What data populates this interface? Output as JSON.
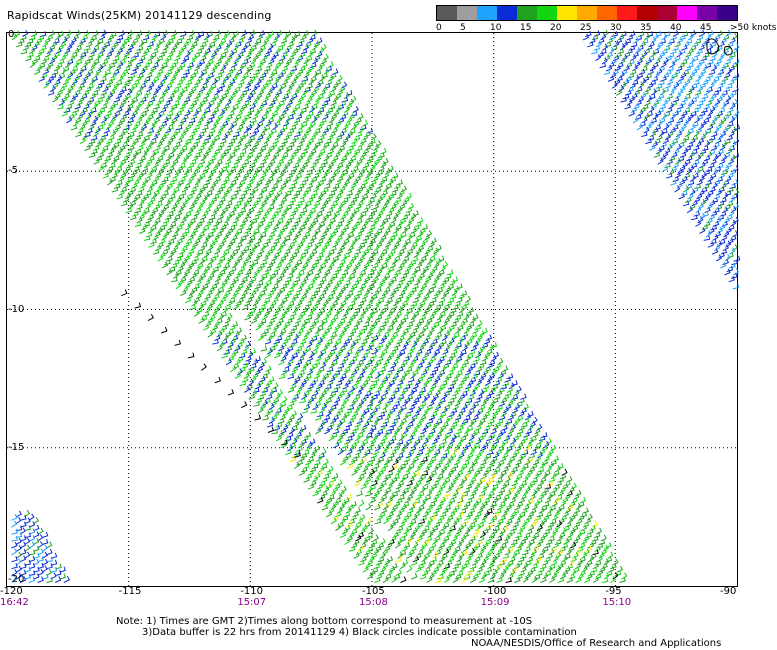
{
  "title": "Rapidscat Winds(25KM) 20141129 descending",
  "legend": {
    "colors": [
      "#5a5a5a",
      "#9e9e9e",
      "#1fa3ff",
      "#0a2bd6",
      "#1fa31f",
      "#11d611",
      "#ffe600",
      "#ffaa00",
      "#ff6600",
      "#ff1a1a",
      "#b40000",
      "#aa0033",
      "#ff00ff",
      "#7a00aa",
      "#3a008a"
    ],
    "labels": [
      "0",
      "5",
      "10",
      "15",
      "20",
      "25",
      "30",
      "35",
      "40",
      "45",
      ">50 knots"
    ]
  },
  "axes": {
    "x_ticks": [
      "-120",
      "-115",
      "-110",
      "-105",
      "-100",
      "-95",
      "-90"
    ],
    "y_ticks": [
      "0",
      "-5",
      "-10",
      "-15",
      "-20"
    ],
    "xlim": [
      -120,
      -90
    ],
    "ylim": [
      -20,
      0
    ]
  },
  "times": [
    "16:42",
    "15:07",
    "15:08",
    "15:09",
    "15:10"
  ],
  "notes": {
    "line1": "Note: 1) Times are GMT 2)Times along bottom correspond to measurement at -10S",
    "line2": "3)Data buffer is 22 hrs from 20141129 4) Black circles indicate possible contamination",
    "credit": "NOAA/NESDIS/Office of Research and Applications"
  },
  "map": {
    "swaths": [
      {
        "name": "main-swath",
        "top_lon": [
          -120,
          -107.5
        ],
        "bottom_lon": [
          -105,
          -94.5
        ],
        "lat_range": [
          0,
          -20
        ]
      },
      {
        "name": "east-swath",
        "top_lon": [
          -96.5,
          -90
        ],
        "bottom_lon": [
          -90,
          -90
        ],
        "lat_range": [
          0,
          -9.5
        ]
      },
      {
        "name": "southwest-swath",
        "top_lon": [
          -120,
          -119
        ],
        "bottom_lon": [
          -120,
          -117.5
        ],
        "lat_range": [
          -17.5,
          -20
        ]
      }
    ],
    "wind_colors": {
      "calm": "#000000",
      "light": "#1fa3ff",
      "moderate": "#0a2bd6",
      "fresh": "#1fa31f",
      "strong": "#11d611",
      "gale": "#ffe600"
    }
  }
}
